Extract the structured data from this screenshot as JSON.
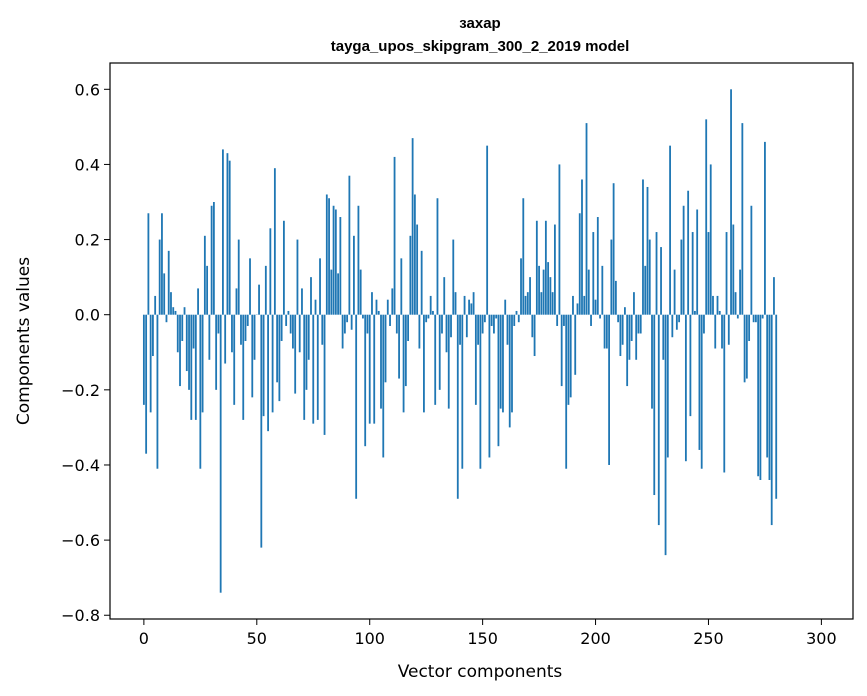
{
  "chart_data": {
    "type": "bar",
    "title": "захар",
    "subtitle": "tayga_upos_skipgram_300_2_2019 model",
    "xlabel": "Vector components",
    "ylabel": "Components values",
    "xlim": [
      -15,
      314
    ],
    "ylim": [
      -0.81,
      0.67
    ],
    "xticks": [
      0,
      50,
      100,
      150,
      200,
      250,
      300
    ],
    "xtick_labels": [
      "0",
      "50",
      "100",
      "150",
      "200",
      "250",
      "300"
    ],
    "yticks": [
      -0.8,
      -0.6,
      -0.4,
      -0.2,
      0.0,
      0.2,
      0.4,
      0.6
    ],
    "ytick_labels": [
      "−0.8",
      "−0.6",
      "−0.4",
      "−0.2",
      "0.0",
      "0.2",
      "0.4",
      "0.6"
    ],
    "color": "#1f77b4",
    "values": [
      -0.24,
      -0.37,
      0.27,
      -0.26,
      -0.11,
      0.05,
      -0.41,
      0.2,
      0.27,
      0.11,
      -0.02,
      0.17,
      0.06,
      0.02,
      0.01,
      -0.1,
      -0.19,
      -0.07,
      0.02,
      -0.15,
      -0.2,
      -0.28,
      -0.09,
      -0.28,
      0.07,
      -0.41,
      -0.26,
      0.21,
      0.13,
      -0.12,
      0.29,
      0.3,
      -0.2,
      -0.05,
      -0.74,
      0.44,
      -0.13,
      0.43,
      0.41,
      -0.1,
      -0.24,
      0.07,
      0.2,
      -0.08,
      -0.28,
      -0.07,
      -0.03,
      0.15,
      -0.22,
      -0.12,
      0.0,
      0.08,
      -0.62,
      -0.27,
      0.13,
      -0.31,
      0.23,
      -0.26,
      0.39,
      -0.18,
      -0.23,
      -0.07,
      0.25,
      -0.03,
      0.01,
      -0.05,
      -0.09,
      -0.21,
      0.2,
      -0.1,
      0.07,
      -0.28,
      -0.2,
      -0.12,
      0.1,
      -0.29,
      0.04,
      -0.28,
      0.15,
      -0.08,
      -0.32,
      0.32,
      0.31,
      0.12,
      0.29,
      0.28,
      0.11,
      0.26,
      -0.09,
      -0.05,
      -0.02,
      0.37,
      -0.04,
      0.21,
      -0.49,
      0.29,
      0.12,
      -0.01,
      -0.35,
      -0.05,
      -0.29,
      0.06,
      -0.29,
      0.04,
      0.01,
      -0.25,
      -0.38,
      -0.18,
      0.04,
      -0.03,
      0.07,
      0.42,
      -0.05,
      -0.17,
      0.15,
      -0.26,
      -0.19,
      -0.07,
      0.21,
      0.47,
      0.32,
      0.24,
      -0.09,
      0.17,
      -0.26,
      -0.02,
      -0.01,
      0.05,
      0.01,
      -0.24,
      0.31,
      -0.2,
      -0.05,
      0.1,
      -0.1,
      -0.25,
      -0.06,
      0.2,
      0.06,
      -0.49,
      -0.08,
      -0.41,
      0.05,
      -0.06,
      0.04,
      0.03,
      0.06,
      -0.24,
      -0.08,
      -0.41,
      -0.05,
      -0.02,
      0.45,
      -0.38,
      -0.03,
      -0.05,
      -0.01,
      -0.35,
      -0.25,
      -0.26,
      0.04,
      -0.08,
      -0.3,
      -0.26,
      -0.03,
      0.01,
      -0.02,
      0.15,
      0.31,
      0.05,
      0.06,
      0.1,
      -0.06,
      -0.11,
      0.25,
      0.13,
      0.06,
      0.12,
      0.25,
      0.14,
      0.1,
      0.06,
      0.24,
      -0.03,
      0.4,
      -0.19,
      -0.03,
      -0.41,
      -0.24,
      -0.22,
      0.05,
      -0.16,
      0.03,
      0.27,
      0.36,
      0.05,
      0.51,
      0.12,
      -0.03,
      0.22,
      0.04,
      0.26,
      -0.01,
      0.13,
      -0.09,
      -0.09,
      -0.4,
      0.2,
      0.35,
      0.09,
      -0.02,
      -0.11,
      -0.08,
      0.02,
      -0.19,
      -0.12,
      -0.07,
      0.06,
      -0.12,
      -0.05,
      -0.05,
      0.36,
      0.13,
      0.34,
      0.2,
      -0.25,
      -0.48,
      0.22,
      -0.56,
      0.18,
      -0.12,
      -0.64,
      -0.38,
      0.45,
      -0.06,
      0.12,
      -0.04,
      -0.02,
      0.2,
      0.29,
      -0.39,
      0.33,
      -0.27,
      0.22,
      0.01,
      0.28,
      -0.36,
      -0.41,
      -0.05,
      0.52,
      0.22,
      0.4,
      0.05,
      -0.09,
      0.05,
      0.01,
      -0.09,
      -0.42,
      0.22,
      -0.08,
      0.6,
      0.24,
      0.06,
      -0.01,
      0.12,
      0.51,
      -0.18,
      -0.17,
      -0.07,
      0.29,
      -0.02,
      -0.02,
      -0.43,
      -0.44,
      -0.01,
      0.46,
      -0.38,
      -0.44,
      -0.56,
      0.1,
      -0.49
    ]
  }
}
